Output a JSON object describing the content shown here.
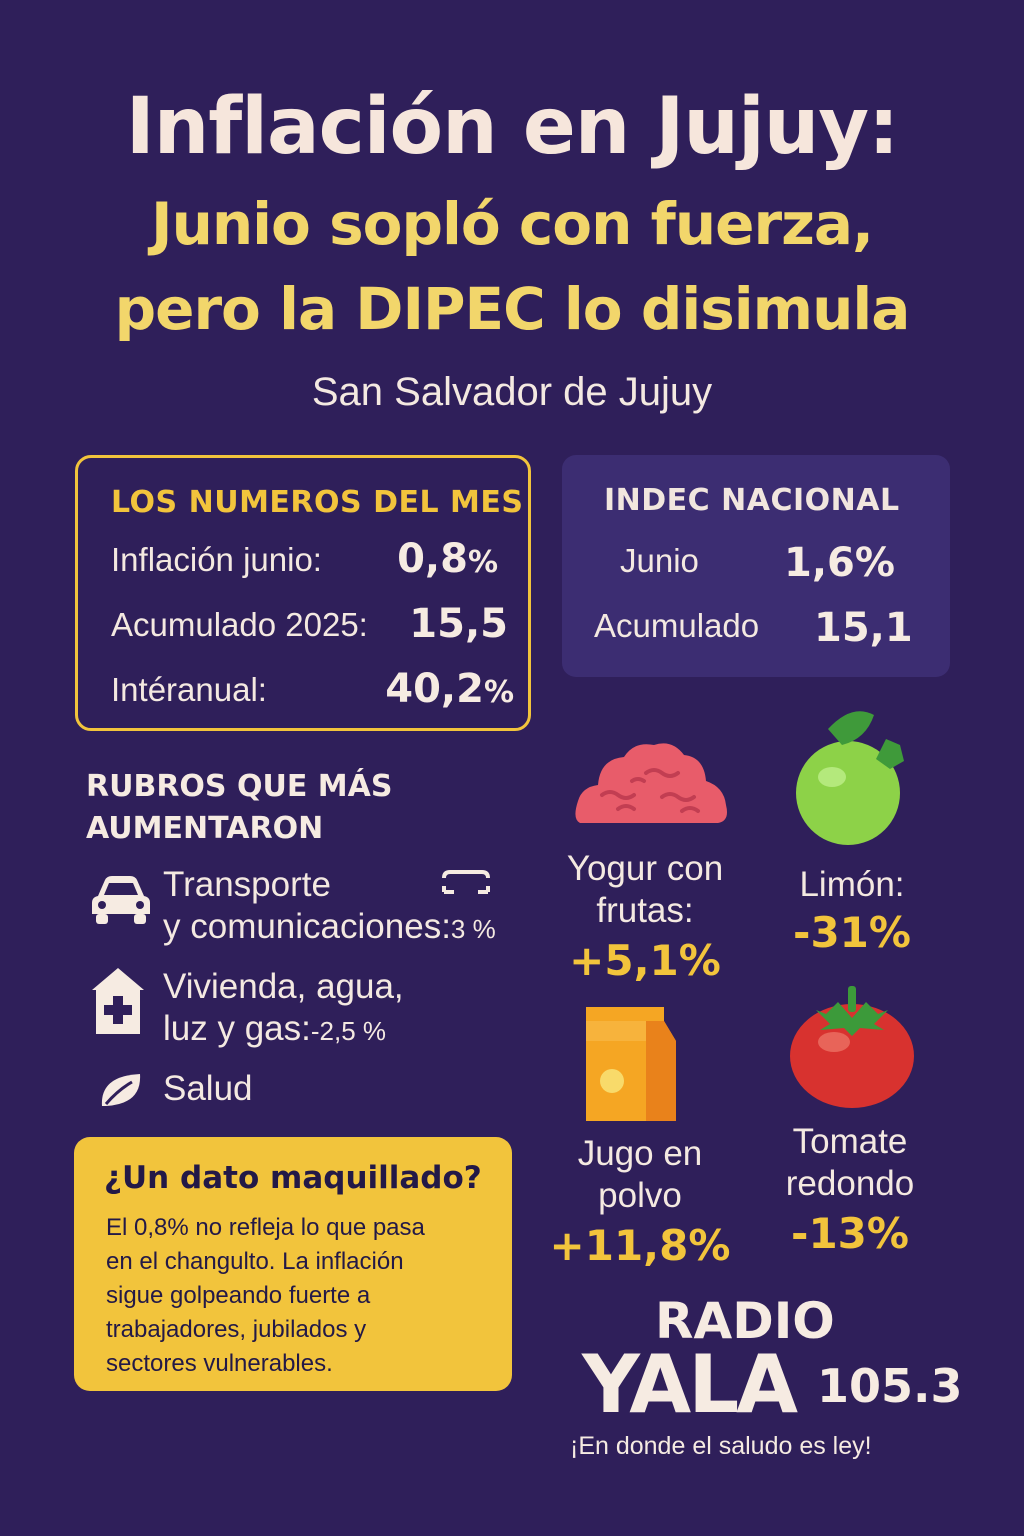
{
  "header": {
    "title": "Inflación en Jujuy:",
    "subtitle_line1": "Junio sopló con fuerza,",
    "subtitle_line2": "pero la DIPEC lo disimula",
    "city": "San Salvador de Jujuy"
  },
  "month_box": {
    "heading": "LOS NUMEROS DEL MES",
    "rows": [
      {
        "label": "Inflación junio:",
        "value": "0,8",
        "unit": "%"
      },
      {
        "label": "Acumulado 2025:",
        "value": "15,5",
        "unit": ""
      },
      {
        "label": "Intéranual:",
        "value": "40,2",
        "unit": "%"
      }
    ]
  },
  "indec_box": {
    "heading": "INDEC NACIONAL",
    "rows": [
      {
        "label": "Junio",
        "value": "1,6%"
      },
      {
        "label": "Acumulado",
        "value": "15,1"
      }
    ]
  },
  "rubros": {
    "heading_line1": "RUBROS QUE MÁS",
    "heading_line2": "AUMENTARON",
    "items": [
      {
        "icon": "car-icon",
        "line1": "Transporte",
        "line2": "y comunicaciones:",
        "value": "3 %"
      },
      {
        "icon": "house-medical-icon",
        "line1": "Vivienda, agua,",
        "line2": "luz y gas:",
        "value": "-2,5 %"
      },
      {
        "icon": "leaf-icon",
        "line1": "Salud",
        "line2": "",
        "value": ""
      }
    ]
  },
  "callout": {
    "title": "¿Un dato maquillado?",
    "body_lines": [
      "El 0,8% no refleja lo que pasa",
      "en el changulto. La inflación",
      "sigue golpeando fuerte a",
      "trabajadores, jubilados y",
      "sectores vulnerables."
    ]
  },
  "foods": [
    {
      "icon": "yogurt-icon",
      "line1": "Yogur con",
      "line2": "frutas:",
      "value": "+5,1%"
    },
    {
      "icon": "lime-icon",
      "line1": "Limón:",
      "line2": "",
      "value": "-31%"
    },
    {
      "icon": "juice-box-icon",
      "line1": "Jugo en",
      "line2": "polvo",
      "value": "+11,8%"
    },
    {
      "icon": "tomato-icon",
      "line1": "Tomate",
      "line2": "redondo",
      "value": "-13%"
    }
  ],
  "radio": {
    "word1": "RADIO",
    "word2": "YALA",
    "frequency": "105.3",
    "slogan": "¡En donde el saludo es ley!"
  },
  "colors": {
    "background": "#2f1f5a",
    "accent_yellow": "#f2c43c",
    "title_cream": "#f6e6dc",
    "subtitle_yellow": "#f2d66b"
  }
}
